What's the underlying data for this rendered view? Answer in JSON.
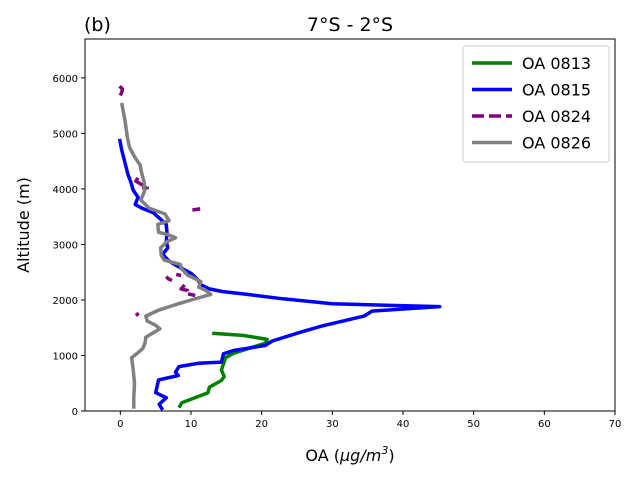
{
  "chart_data": {
    "type": "line",
    "panel_label": "(b)",
    "title": "7°S - 2°S",
    "xlabel_main": "OA (",
    "xlabel_unit_mu": "μg",
    "xlabel_unit_rest": "/m",
    "xlabel_unit_exp": "3",
    "xlabel_close": ")",
    "ylabel": "Altitude (m)",
    "xlim": [
      -5,
      70
    ],
    "ylim": [
      0,
      6700
    ],
    "xticks": [
      0,
      10,
      20,
      30,
      40,
      50,
      60,
      70
    ],
    "yticks": [
      0,
      1000,
      2000,
      3000,
      4000,
      5000,
      6000
    ],
    "legend_position": "top-right",
    "series": [
      {
        "name": "OA 0813",
        "color": "#008000",
        "style": "solid",
        "points": [
          [
            8.3,
            60
          ],
          [
            8.7,
            150
          ],
          [
            12.4,
            330
          ],
          [
            12.6,
            430
          ],
          [
            14.3,
            550
          ],
          [
            14.7,
            620
          ],
          [
            14.3,
            740
          ],
          [
            14.6,
            850
          ],
          [
            14.9,
            960
          ],
          [
            16.0,
            1040
          ],
          [
            18.0,
            1120
          ],
          [
            20.5,
            1220
          ],
          [
            20.8,
            1290
          ],
          [
            17.5,
            1360
          ],
          [
            13.0,
            1400
          ]
        ]
      },
      {
        "name": "OA 0815",
        "color": "#0000ff",
        "style": "solid",
        "points": [
          [
            6.0,
            20
          ],
          [
            5.5,
            120
          ],
          [
            6.5,
            240
          ],
          [
            5.0,
            330
          ],
          [
            5.4,
            560
          ],
          [
            8.2,
            640
          ],
          [
            7.8,
            700
          ],
          [
            8.3,
            800
          ],
          [
            11.0,
            860
          ],
          [
            14.3,
            880
          ],
          [
            14.6,
            1030
          ],
          [
            16.0,
            1090
          ],
          [
            20.5,
            1180
          ],
          [
            21.5,
            1260
          ],
          [
            25.5,
            1420
          ],
          [
            28.5,
            1530
          ],
          [
            31.5,
            1620
          ],
          [
            34.5,
            1710
          ],
          [
            35.6,
            1800
          ],
          [
            45.2,
            1880
          ],
          [
            30.0,
            1930
          ],
          [
            23.0,
            2020
          ],
          [
            18.0,
            2100
          ],
          [
            14.5,
            2150
          ],
          [
            12.6,
            2200
          ],
          [
            11.3,
            2280
          ],
          [
            11.0,
            2360
          ],
          [
            10.0,
            2480
          ],
          [
            8.2,
            2600
          ],
          [
            6.9,
            2700
          ],
          [
            6.0,
            2820
          ],
          [
            6.7,
            2940
          ],
          [
            6.5,
            3060
          ],
          [
            6.6,
            3200
          ],
          [
            6.5,
            3360
          ],
          [
            4.7,
            3570
          ],
          [
            3.1,
            3650
          ],
          [
            2.1,
            3720
          ],
          [
            2.5,
            3850
          ],
          [
            1.8,
            3980
          ],
          [
            1.5,
            4120
          ],
          [
            1.1,
            4250
          ],
          [
            0.2,
            4700
          ],
          [
            -0.1,
            4900
          ]
        ]
      },
      {
        "name": "OA 0824",
        "color": "#800080",
        "style": "dashed",
        "segments": [
          [
            [
              -0.1,
              5850
            ],
            [
              0.3,
              5800
            ],
            [
              0.2,
              5740
            ],
            [
              0.0,
              5680
            ]
          ],
          [
            [
              11.3,
              3640
            ],
            [
              10.2,
              3620
            ]
          ],
          [
            [
              2.5,
              4200
            ],
            [
              2.2,
              4140
            ],
            [
              3.8,
              4020
            ],
            [
              3.1,
              4010
            ]
          ],
          [
            [
              6.5,
              2420
            ],
            [
              6.8,
              2380
            ],
            [
              7.3,
              2350
            ]
          ],
          [
            [
              7.9,
              2460
            ],
            [
              8.6,
              2440
            ]
          ],
          [
            [
              9.1,
              2270
            ],
            [
              8.6,
              2200
            ],
            [
              9.5,
              2170
            ],
            [
              9.3,
              2120
            ],
            [
              10.6,
              2080
            ]
          ],
          [
            [
              2.6,
              1760
            ],
            [
              2.2,
              1720
            ]
          ]
        ]
      },
      {
        "name": "OA 0826",
        "color": "#808080",
        "style": "solid",
        "points": [
          [
            1.9,
            40
          ],
          [
            1.9,
            250
          ],
          [
            2.0,
            500
          ],
          [
            1.8,
            760
          ],
          [
            1.6,
            960
          ],
          [
            2.5,
            1050
          ],
          [
            3.2,
            1130
          ],
          [
            3.5,
            1230
          ],
          [
            3.6,
            1330
          ],
          [
            5.6,
            1480
          ],
          [
            4.9,
            1550
          ],
          [
            3.8,
            1620
          ],
          [
            3.6,
            1710
          ],
          [
            5.5,
            1820
          ],
          [
            8.2,
            1930
          ],
          [
            10.0,
            2000
          ],
          [
            12.8,
            2100
          ],
          [
            12.0,
            2180
          ],
          [
            11.1,
            2230
          ],
          [
            11.4,
            2330
          ],
          [
            9.5,
            2450
          ],
          [
            8.6,
            2570
          ],
          [
            8.5,
            2640
          ],
          [
            6.2,
            2720
          ],
          [
            5.8,
            2800
          ],
          [
            5.7,
            2940
          ],
          [
            6.6,
            3050
          ],
          [
            7.8,
            3120
          ],
          [
            6.6,
            3180
          ],
          [
            5.4,
            3220
          ],
          [
            5.3,
            3360
          ],
          [
            6.9,
            3430
          ],
          [
            6.3,
            3550
          ],
          [
            4.1,
            3650
          ],
          [
            2.9,
            3800
          ],
          [
            3.4,
            3950
          ],
          [
            3.4,
            4100
          ],
          [
            3.0,
            4300
          ],
          [
            2.8,
            4430
          ],
          [
            2.0,
            4580
          ],
          [
            1.3,
            4750
          ],
          [
            1.0,
            4930
          ],
          [
            0.8,
            5100
          ],
          [
            0.7,
            5200
          ],
          [
            0.2,
            5550
          ]
        ]
      }
    ]
  }
}
